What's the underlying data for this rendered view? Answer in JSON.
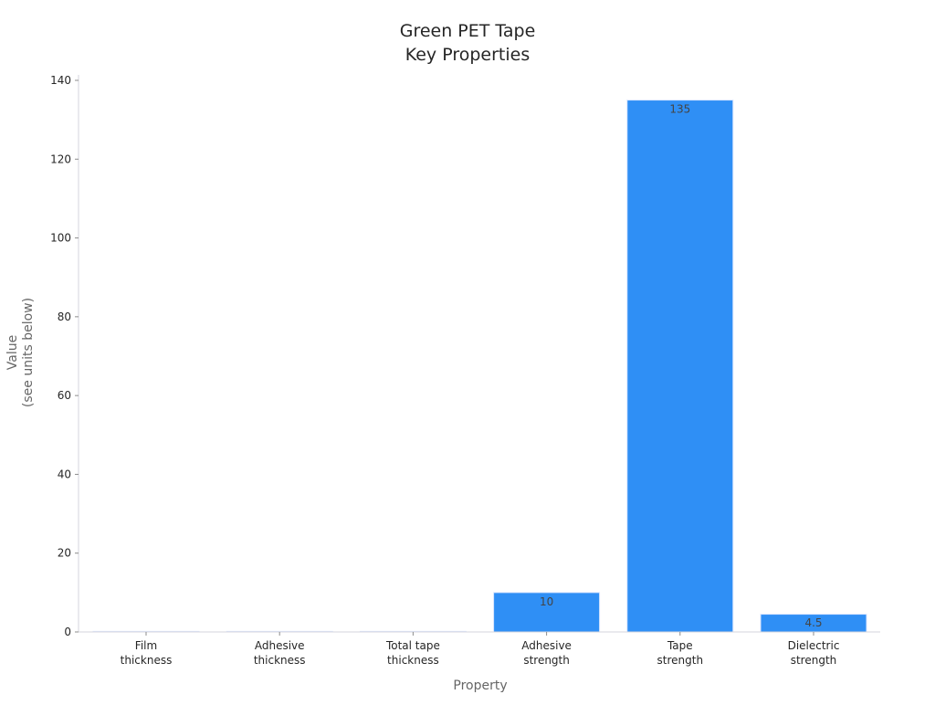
{
  "chart_data": {
    "type": "bar",
    "title": [
      "Green PET Tape",
      "Key Properties"
    ],
    "xlabel": "Property",
    "ylabel": [
      "Value",
      "(see units below)"
    ],
    "categories": [
      [
        "Film",
        "thickness"
      ],
      [
        "Adhesive",
        "thickness"
      ],
      [
        "Total tape",
        "thickness"
      ],
      [
        "Adhesive",
        "strength"
      ],
      [
        "Tape",
        "strength"
      ],
      [
        "Dielectric",
        "strength"
      ]
    ],
    "values": [
      0.025,
      0.03,
      0.055,
      10,
      135,
      4.5
    ],
    "data_labels": [
      "",
      "",
      "",
      "10",
      "135",
      "4.5"
    ],
    "ylim": [
      0,
      140
    ],
    "yticks": [
      0,
      20,
      40,
      60,
      80,
      100,
      120,
      140
    ],
    "grid": false,
    "bar_color": "#2f8ff5",
    "bar_edge_color": "#d9e6ff"
  }
}
